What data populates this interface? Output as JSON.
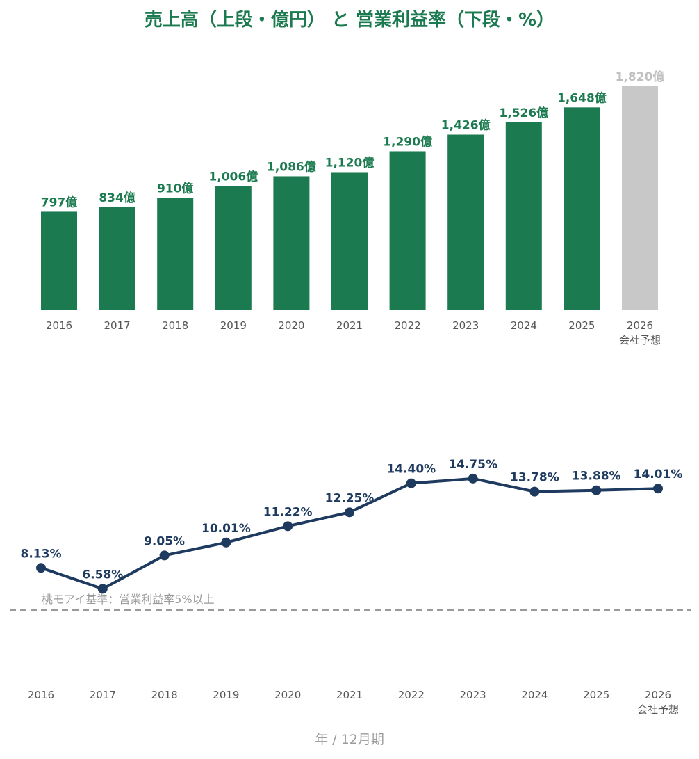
{
  "title": "売上高（上段・億円） と 営業利益率（下段・%）",
  "x_caption": "年 / 12月期",
  "forecast_note": "会社予想",
  "colors": {
    "bar": "#1b7a4f",
    "forecast_bar": "#c8c8c8",
    "forecast_label": "#c0c0c0",
    "line": "#1f3a5f",
    "reference": "#9a9a9a",
    "axis_text": "#555555"
  },
  "chart_data": [
    {
      "type": "bar",
      "title": "売上高（上段・億円）",
      "categories": [
        "2016",
        "2017",
        "2018",
        "2019",
        "2020",
        "2021",
        "2022",
        "2023",
        "2024",
        "2025",
        "2026"
      ],
      "values": [
        797,
        834,
        910,
        1006,
        1086,
        1120,
        1290,
        1426,
        1526,
        1648,
        1820
      ],
      "labels": [
        "797億",
        "834億",
        "910億",
        "1,006億",
        "1,086億",
        "1,120億",
        "1,290億",
        "1,426億",
        "1,526億",
        "1,648億",
        "1,820億"
      ],
      "forecast_index": 10,
      "ylim": [
        0,
        1820
      ],
      "grid": false
    },
    {
      "type": "line",
      "title": "営業利益率（下段・%）",
      "categories": [
        "2016",
        "2017",
        "2018",
        "2019",
        "2020",
        "2021",
        "2022",
        "2023",
        "2024",
        "2025",
        "2026"
      ],
      "values": [
        8.13,
        6.58,
        9.05,
        10.01,
        11.22,
        12.25,
        14.4,
        14.75,
        13.78,
        13.88,
        14.01
      ],
      "labels": [
        "8.13%",
        "6.58%",
        "9.05%",
        "10.01%",
        "11.22%",
        "12.25%",
        "14.40%",
        "14.75%",
        "13.78%",
        "13.88%",
        "14.01%"
      ],
      "forecast_index": 10,
      "reference_line": {
        "value": 5,
        "label": "桃モアイ基準：営業利益率5%以上"
      },
      "grid": false
    }
  ]
}
